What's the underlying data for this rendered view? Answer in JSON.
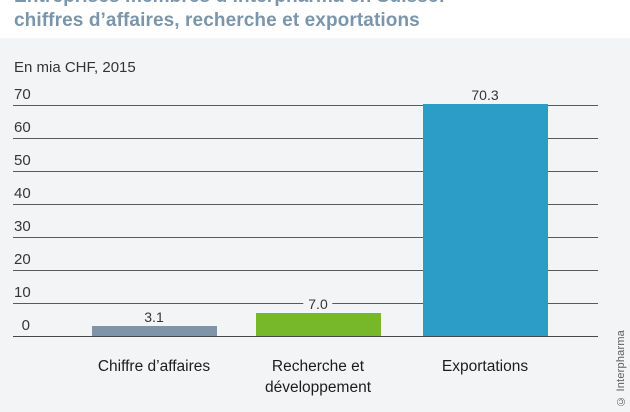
{
  "header": {
    "title_line1": "Entreprises membres d’Interpharma en Suisse:",
    "title_line2": "chiffres d’affaires, recherche et exportations"
  },
  "subtitle": "En mia CHF, 2015",
  "credit": "© Interpharma",
  "colors": {
    "title": "#7b95aa",
    "figure_background": "#f3f4f5",
    "gridline": "#58595b",
    "bar_revenue": "#7e94a9",
    "bar_rnd": "#76b82a",
    "bar_exports": "#2b9dc6"
  },
  "chart_data": {
    "type": "bar",
    "title": "Entreprises membres d’Interpharma en Suisse: chiffres d’affaires, recherche et exportations",
    "subtitle": "En mia CHF, 2015",
    "unit": "mia CHF",
    "year": "2015",
    "categories": [
      "Chiffre d’affaires",
      "Recherche et développement",
      "Exportations"
    ],
    "values": [
      3.1,
      7,
      70.3
    ],
    "value_labels": [
      "3.1",
      "7.0",
      "70.3"
    ],
    "bar_colors": [
      "#7e94a9",
      "#76b82a",
      "#2b9dc6"
    ],
    "yticks": [
      0,
      10,
      20,
      30,
      40,
      50,
      60,
      70
    ],
    "ytick_labels": [
      "0",
      "10",
      "20",
      "30",
      "40",
      "50",
      "60",
      "70"
    ],
    "ylim": [
      0,
      74
    ],
    "xlabel": "",
    "ylabel": "",
    "grid": true,
    "legend": false
  }
}
